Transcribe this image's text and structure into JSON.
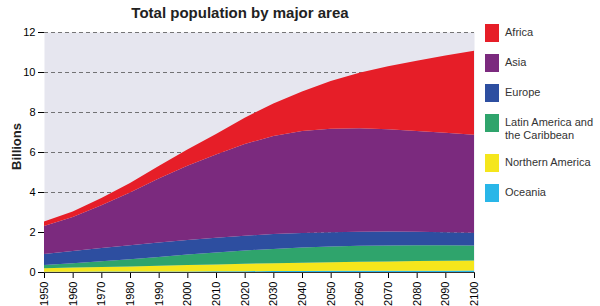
{
  "chart_data": {
    "type": "area",
    "title": "Total population by major area",
    "y_label": "Billions",
    "stacked": true,
    "grid": true,
    "legend": "right",
    "x": [
      1950,
      1960,
      1970,
      1980,
      1990,
      2000,
      2010,
      2020,
      2030,
      2040,
      2050,
      2060,
      2070,
      2080,
      2090,
      2100
    ],
    "xlim": [
      1950,
      2100
    ],
    "xticks": [
      1950,
      1960,
      1970,
      1980,
      1990,
      2000,
      2010,
      2020,
      2030,
      2040,
      2050,
      2060,
      2070,
      2080,
      2090,
      2100
    ],
    "ylim": [
      0,
      12
    ],
    "yticks": [
      0,
      2,
      4,
      6,
      8,
      10,
      12
    ],
    "series": [
      {
        "name": "Oceania",
        "color": "#29b6e8",
        "values": [
          0.013,
          0.016,
          0.02,
          0.023,
          0.027,
          0.031,
          0.037,
          0.042,
          0.047,
          0.052,
          0.057,
          0.061,
          0.064,
          0.066,
          0.068,
          0.07
        ]
      },
      {
        "name": "Northern America",
        "color": "#f5e61c",
        "values": [
          0.172,
          0.204,
          0.231,
          0.254,
          0.28,
          0.313,
          0.344,
          0.37,
          0.394,
          0.416,
          0.435,
          0.451,
          0.465,
          0.478,
          0.495,
          0.51
        ]
      },
      {
        "name": "Latin America and the Caribbean",
        "color": "#2fa46c",
        "values": [
          0.168,
          0.22,
          0.288,
          0.364,
          0.446,
          0.526,
          0.596,
          0.662,
          0.715,
          0.755,
          0.782,
          0.797,
          0.8,
          0.79,
          0.77,
          0.74
        ]
      },
      {
        "name": "Europe",
        "color": "#2d4ea0",
        "values": [
          0.549,
          0.605,
          0.657,
          0.694,
          0.721,
          0.726,
          0.738,
          0.744,
          0.741,
          0.732,
          0.719,
          0.704,
          0.69,
          0.675,
          0.66,
          0.64
        ]
      },
      {
        "name": "Asia",
        "color": "#7b2a7e",
        "values": [
          1.396,
          1.7,
          2.139,
          2.636,
          3.199,
          3.719,
          4.164,
          4.582,
          4.9,
          5.09,
          5.164,
          5.17,
          5.12,
          5.04,
          4.97,
          4.9
        ]
      },
      {
        "name": "Africa",
        "color": "#e61e28",
        "values": [
          0.229,
          0.285,
          0.366,
          0.478,
          0.63,
          0.808,
          1.022,
          1.316,
          1.634,
          1.98,
          2.393,
          2.778,
          3.15,
          3.51,
          3.86,
          4.2
        ]
      }
    ]
  }
}
